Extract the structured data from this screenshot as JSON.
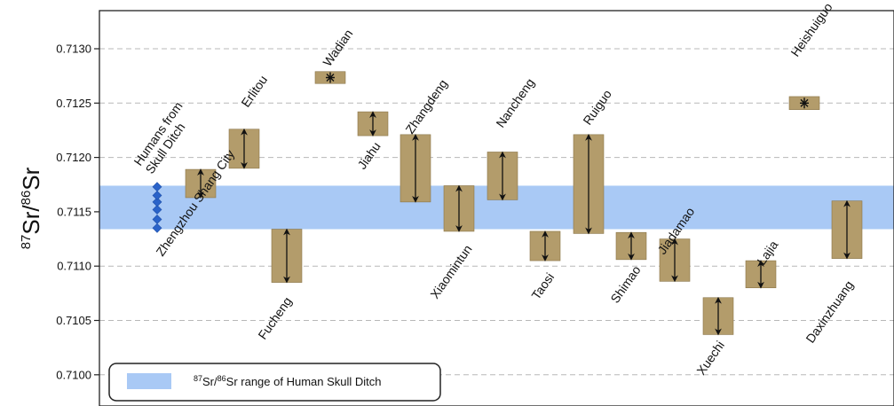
{
  "chart_data": {
    "type": "range-box",
    "ylabel": {
      "sup1": "87",
      "mid": "Sr/",
      "sup2": "86",
      "end": "Sr"
    },
    "ylim": [
      0.7097,
      0.7134
    ],
    "yticks": [
      "0.7100",
      "0.7105",
      "0.7110",
      "0.7115",
      "0.7120",
      "0.7125",
      "0.7130"
    ],
    "ytick_values": [
      0.71,
      0.7105,
      0.711,
      0.7115,
      0.712,
      0.7125,
      0.713
    ],
    "grid": "horizontal dashed",
    "band": {
      "low": 0.71134,
      "high": 0.71174,
      "color": "#a9c9f5"
    },
    "legend": {
      "position": "bottom-left",
      "sup1": "87",
      "mid": "Sr/",
      "sup2": "86",
      "end": "Sr range of Human Skull Ditch"
    },
    "box_color": "#b39c6b",
    "human_points": {
      "label": "Humans from Skull Ditch",
      "color": "#2a63c9",
      "values": [
        0.71135,
        0.71143,
        0.71152,
        0.71159,
        0.71165,
        0.71173
      ]
    },
    "sites": [
      {
        "name": "Zhengzhou Shang City",
        "low": 0.71163,
        "high": 0.71189,
        "marker": "range"
      },
      {
        "name": "Erlitou",
        "low": 0.7119,
        "high": 0.71226,
        "marker": "range"
      },
      {
        "name": "Fucheng",
        "low": 0.71085,
        "high": 0.71134,
        "marker": "range"
      },
      {
        "name": "Wadian",
        "low": 0.71268,
        "high": 0.71279,
        "marker": "point"
      },
      {
        "name": "Jiahu",
        "low": 0.7122,
        "high": 0.71242,
        "marker": "range"
      },
      {
        "name": "Zhangdeng",
        "low": 0.71159,
        "high": 0.71221,
        "marker": "range"
      },
      {
        "name": "Xiaomintun",
        "low": 0.71132,
        "high": 0.71174,
        "marker": "range"
      },
      {
        "name": "Nancheng",
        "low": 0.71161,
        "high": 0.71205,
        "marker": "range"
      },
      {
        "name": "Taosi",
        "low": 0.71105,
        "high": 0.71132,
        "marker": "range"
      },
      {
        "name": "Ruiguo",
        "low": 0.7113,
        "high": 0.71221,
        "marker": "range"
      },
      {
        "name": "Shimao",
        "low": 0.71106,
        "high": 0.71131,
        "marker": "range"
      },
      {
        "name": "Jiadamao",
        "low": 0.71086,
        "high": 0.71125,
        "marker": "range"
      },
      {
        "name": "Xuechi",
        "low": 0.71037,
        "high": 0.71071,
        "marker": "range"
      },
      {
        "name": "Lajia",
        "low": 0.7108,
        "high": 0.71105,
        "marker": "range"
      },
      {
        "name": "Heishuiguo",
        "low": 0.71244,
        "high": 0.71256,
        "marker": "point"
      },
      {
        "name": "Daxinzhuang",
        "low": 0.71107,
        "high": 0.7116,
        "marker": "range"
      }
    ]
  }
}
